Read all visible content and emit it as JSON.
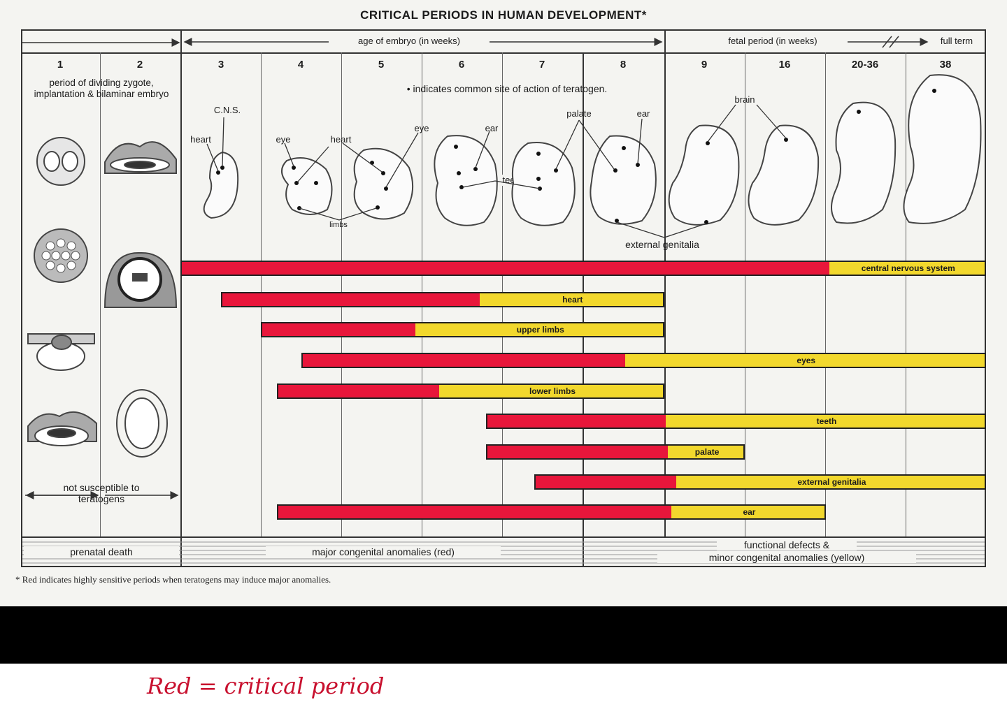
{
  "title": "CRITICAL PERIODS IN HUMAN DEVELOPMENT*",
  "header": {
    "embryo_age": "age of embryo (in weeks)",
    "fetal_period": "fetal period (in weeks)",
    "full_term": "full term"
  },
  "weeks": [
    "1",
    "2",
    "3",
    "4",
    "5",
    "6",
    "7",
    "8",
    "9",
    "16",
    "20-36",
    "38"
  ],
  "period_text": "period of dividing zygote, implantation & bilaminar embryo",
  "teratogen_note": "• indicates common site of action of teratogen.",
  "structure_labels": {
    "cns": "C.N.S.",
    "heart_wk3": "heart",
    "eye_wk4": "eye",
    "heart_wk5": "heart",
    "eye_wk6": "eye",
    "ear_wk6": "ear",
    "palate": "palate",
    "ear_wk8": "ear",
    "brain": "brain",
    "teeth": "teeth",
    "limbs": "limbs",
    "external_genitalia": "external genitalia"
  },
  "not_susceptible": "not susceptible to teratogens",
  "chart_data": {
    "type": "gantt",
    "legend": "red = highly sensitive period; yellow = less sensitive period",
    "bars": [
      {
        "name": "central nervous system",
        "label": "central nervous system",
        "red_start": 3,
        "red_end": 20.5,
        "yellow_end": 38
      },
      {
        "name": "heart",
        "label": "heart",
        "red_start": 3.5,
        "red_end": 6.7,
        "yellow_end": 9
      },
      {
        "name": "upper limbs",
        "label": "upper limbs",
        "red_start": 4,
        "red_end": 5.9,
        "yellow_end": 9
      },
      {
        "name": "eyes",
        "label": "eyes",
        "red_start": 4.5,
        "red_end": 8.5,
        "yellow_end": 38
      },
      {
        "name": "lower limbs",
        "label": "lower limbs",
        "red_start": 4.2,
        "red_end": 6.2,
        "yellow_end": 9
      },
      {
        "name": "teeth",
        "label": "teeth",
        "red_start": 6.8,
        "red_end": 9,
        "yellow_end": 38
      },
      {
        "name": "palate",
        "label": "palate",
        "red_start": 6.8,
        "red_end": 9.2,
        "yellow_end": 16
      },
      {
        "name": "external genitalia",
        "label": "external genitalia",
        "red_start": 7.4,
        "red_end": 9.9,
        "yellow_end": 38
      },
      {
        "name": "ear",
        "label": "ear",
        "red_start": 4.2,
        "red_end": 9.5,
        "yellow_end": 20.1
      }
    ]
  },
  "footer": {
    "prenatal_death": "prenatal death",
    "major": "major congenital anomalies (red)",
    "functional_line1": "functional defects &",
    "functional_line2": "minor congenital anomalies (yellow)"
  },
  "footnote": "* Red indicates highly sensitive periods when teratogens may induce major anomalies.",
  "handwritten_note": "Red = critical period",
  "colors": {
    "red": "#e8163b",
    "yellow": "#f2d82d",
    "band": "#000000"
  }
}
